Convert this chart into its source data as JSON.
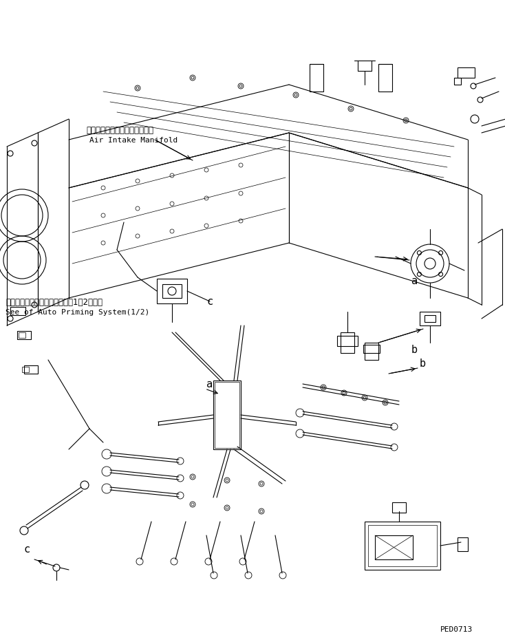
{
  "title": "",
  "bg_color": "#ffffff",
  "line_color": "#000000",
  "fig_width": 7.34,
  "fig_height": 9.33,
  "dpi": 100,
  "label_a1": "a",
  "label_b1": "b",
  "label_c1": "c",
  "label_a2": "a",
  "label_b2": "b",
  "label_c2": "c",
  "japanese_label1": "エアーインテークマニホールド",
  "english_label1": "Air Intake Manifold",
  "japanese_label2": "オートプライミングシステム（1／2）参照",
  "english_label2": "See of Auto Priming System(1/2)",
  "part_number": "PED0713"
}
